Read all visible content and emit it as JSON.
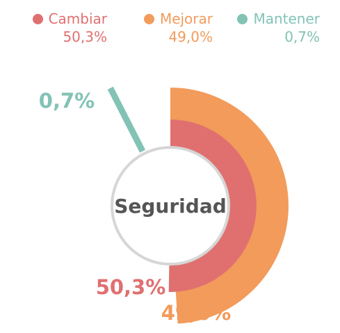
{
  "chart_data": {
    "type": "pie",
    "title": "Seguridad",
    "series": [
      {
        "name": "Cambiar",
        "value": 50.3,
        "label": "50,3%",
        "color": "#e07070"
      },
      {
        "name": "Mejorar",
        "value": 49.0,
        "label": "49,0%",
        "color": "#f29b5b"
      },
      {
        "name": "Mantener",
        "value": 0.7,
        "label": "0,7%",
        "color": "#82c3b5"
      }
    ],
    "legend_position": "top",
    "center_label_color": "#555555",
    "center_ring_color": "#d6d6d6"
  }
}
